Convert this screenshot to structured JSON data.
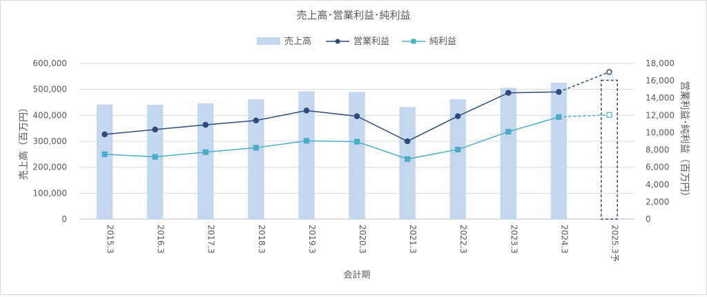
{
  "chart_data": {
    "type": "bar",
    "title": "売上高･営業利益･純利益",
    "xlabel": "会計期",
    "ylabel": "売上高（百万円）",
    "y2label": "営業利益･純利益（百万円）",
    "categories": [
      "2015.3",
      "2016.3",
      "2017.3",
      "2018.3",
      "2019.3",
      "2020.3",
      "2021.3",
      "2022.3",
      "2023.3",
      "2024.3",
      "2025.3予"
    ],
    "ylim": [
      0,
      600000
    ],
    "y_ticks": [
      0,
      100000,
      200000,
      300000,
      400000,
      500000,
      600000
    ],
    "y_tick_labels": [
      "0",
      "100,000",
      "200,000",
      "300,000",
      "400,000",
      "500,000",
      "600,000"
    ],
    "y2lim": [
      0,
      18000
    ],
    "y2_ticks": [
      0,
      2000,
      4000,
      6000,
      8000,
      10000,
      12000,
      14000,
      16000,
      18000
    ],
    "y2_tick_labels": [
      "0",
      "2,000",
      "4,000",
      "6,000",
      "8,000",
      "10,000",
      "12,000",
      "14,000",
      "16,000",
      "18,000"
    ],
    "grid": "horizontal",
    "legend_position": "top",
    "series": [
      {
        "name": "売上高",
        "type": "bar",
        "axis": "left",
        "color": "#c5d6ef",
        "values": [
          442000,
          441000,
          446000,
          462000,
          492000,
          490000,
          432000,
          462000,
          506000,
          526000,
          null
        ]
      },
      {
        "name": "営業利益",
        "type": "line",
        "axis": "right",
        "color": "#2e4a7a",
        "values": [
          9800,
          10350,
          10900,
          11400,
          12550,
          11900,
          9000,
          11900,
          14600,
          14700,
          17000
        ]
      },
      {
        "name": "純利益",
        "type": "line",
        "axis": "right",
        "color": "#4bacc6",
        "values": [
          7500,
          7200,
          7750,
          8250,
          9050,
          8950,
          6950,
          8050,
          10100,
          11800,
          12050
        ]
      }
    ],
    "forecast_index": 10
  }
}
